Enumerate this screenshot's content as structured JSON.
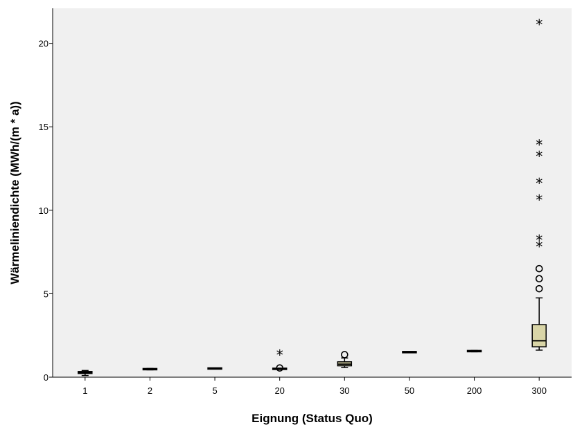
{
  "chart_data": {
    "type": "boxplot",
    "xlabel": "Eignung (Status Quo)",
    "ylabel": "Wärmeliniendichte (MWh/(m * a))",
    "ylim": [
      0,
      22.1
    ],
    "yticks": [
      0,
      5,
      10,
      15,
      20
    ],
    "grid": false,
    "background_color": "#f0f0f0",
    "box_color": "#d9d5a7",
    "categories": [
      "1",
      "2",
      "5",
      "20",
      "30",
      "50",
      "200",
      "300"
    ],
    "boxes": [
      {
        "category": "1",
        "whisker_low": 0.1,
        "q1": 0.22,
        "median": 0.28,
        "q3": 0.34,
        "whisker_high": 0.4,
        "outliers_circle": [],
        "outliers_star": []
      },
      {
        "category": "2",
        "whisker_low": 0.44,
        "q1": 0.46,
        "median": 0.48,
        "q3": 0.5,
        "whisker_high": 0.52,
        "outliers_circle": [],
        "outliers_star": []
      },
      {
        "category": "5",
        "whisker_low": 0.5,
        "q1": 0.51,
        "median": 0.52,
        "q3": 0.53,
        "whisker_high": 0.54,
        "outliers_circle": [],
        "outliers_star": []
      },
      {
        "category": "20",
        "whisker_low": 0.47,
        "q1": 0.49,
        "median": 0.5,
        "q3": 0.51,
        "whisker_high": 0.53,
        "outliers_circle": [
          0.55
        ],
        "outliers_star": [
          1.4
        ]
      },
      {
        "category": "30",
        "whisker_low": 0.58,
        "q1": 0.68,
        "median": 0.78,
        "q3": 0.92,
        "whisker_high": 1.15,
        "outliers_circle": [
          1.35
        ],
        "outliers_star": []
      },
      {
        "category": "50",
        "whisker_low": 1.48,
        "q1": 1.49,
        "median": 1.5,
        "q3": 1.51,
        "whisker_high": 1.53,
        "outliers_circle": [],
        "outliers_star": []
      },
      {
        "category": "200",
        "whisker_low": 1.52,
        "q1": 1.54,
        "median": 1.56,
        "q3": 1.58,
        "whisker_high": 1.6,
        "outliers_circle": [],
        "outliers_star": []
      },
      {
        "category": "300",
        "whisker_low": 1.62,
        "q1": 1.82,
        "median": 2.18,
        "q3": 3.15,
        "whisker_high": 4.75,
        "outliers_circle": [
          5.3,
          5.9,
          6.5
        ],
        "outliers_star": [
          7.9,
          8.3,
          10.7,
          11.7,
          13.3,
          14.0,
          21.2
        ]
      }
    ]
  }
}
